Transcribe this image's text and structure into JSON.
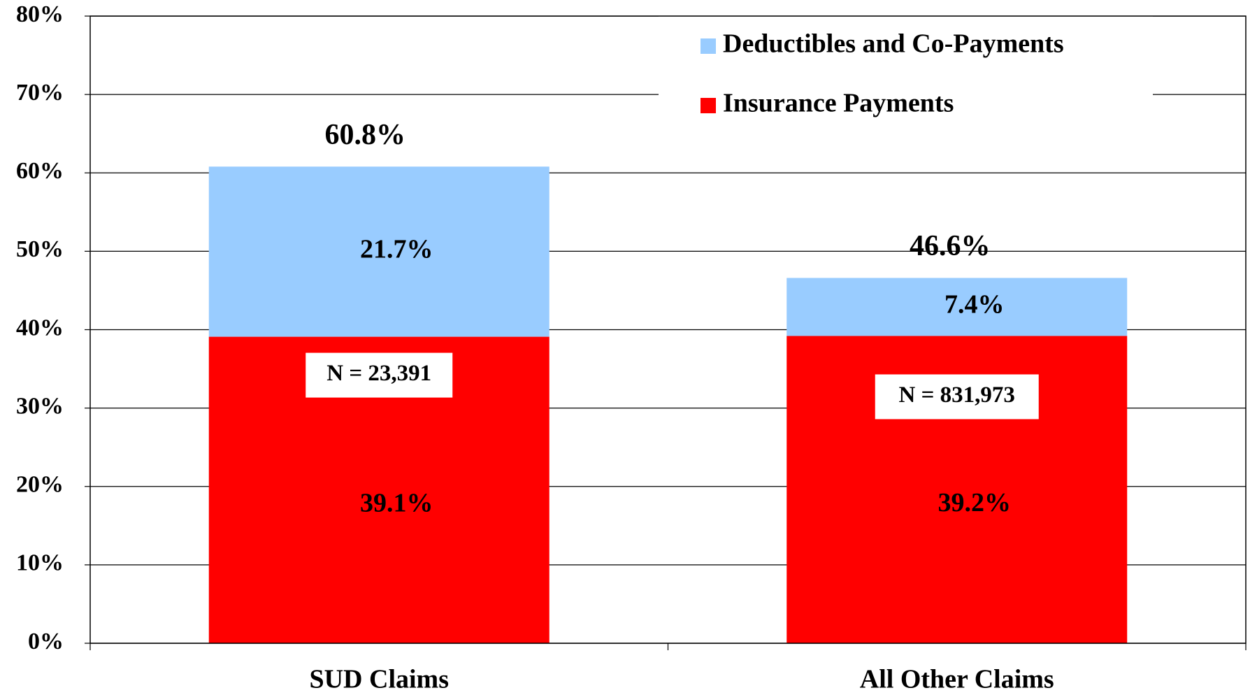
{
  "chart_data": {
    "type": "stacked_bar",
    "categories": [
      "SUD Claims",
      "All Other Claims"
    ],
    "series": [
      {
        "name": "Insurance Payments",
        "color": "#ff0000",
        "values": [
          39.1,
          39.2
        ],
        "value_labels": [
          "39.1%",
          "39.2%"
        ]
      },
      {
        "name": "Deductibles and Co-Payments",
        "color": "#99ccff",
        "values": [
          21.7,
          7.4
        ],
        "value_labels": [
          "21.7%",
          "7.4%"
        ]
      }
    ],
    "totals": [
      60.8,
      46.6
    ],
    "total_labels": [
      "60.8%",
      "46.6%"
    ],
    "annotations": [
      "N = 23,391",
      "N = 831,973"
    ],
    "ylim": [
      0,
      80
    ],
    "yticks": [
      {
        "value": 0,
        "label": "0%"
      },
      {
        "value": 10,
        "label": "10%"
      },
      {
        "value": 20,
        "label": "20%"
      },
      {
        "value": 30,
        "label": "30%"
      },
      {
        "value": 40,
        "label": "40%"
      },
      {
        "value": 50,
        "label": "50%"
      },
      {
        "value": 60,
        "label": "60%"
      },
      {
        "value": 70,
        "label": "70%"
      },
      {
        "value": 80,
        "label": "80%"
      }
    ],
    "grid": true,
    "legend": "top-right"
  }
}
